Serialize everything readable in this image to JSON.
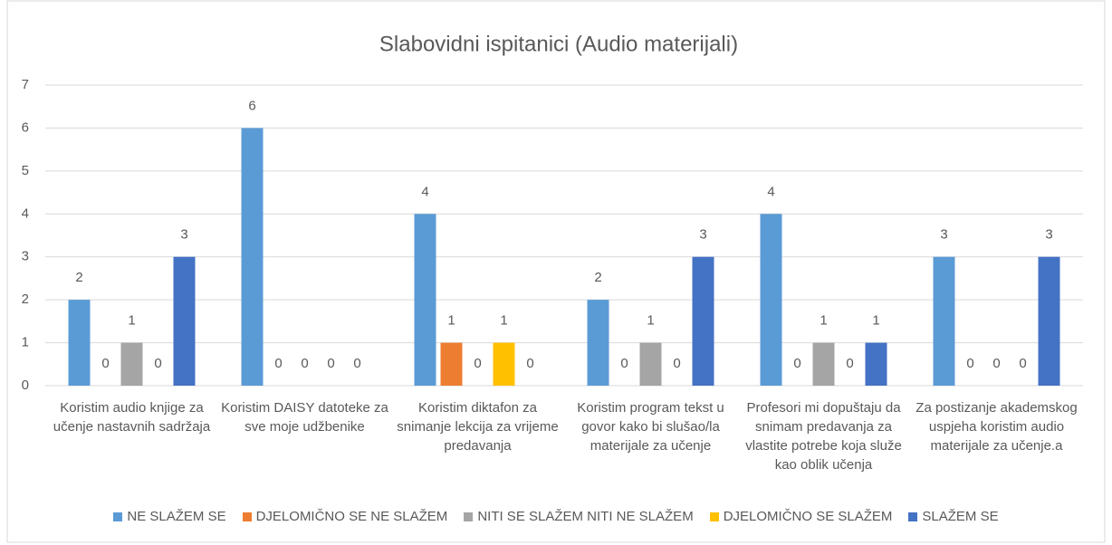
{
  "chart_data": {
    "type": "bar",
    "title": "Slabovidni ispitanici (Audio materijali)",
    "categories": [
      "Koristim audio knjige za učenje nastavnih sadržaja",
      "Koristim DAISY datoteke za sve moje udžbenike",
      "Koristim diktafon za snimanje lekcija za vrijeme predavanja",
      "Koristim program tekst u govor kako bi slušao/la materijale za učenje",
      "Profesori mi dopuštaju da snimam predavanja za vlastite potrebe koja služe kao oblik učenja",
      "Za postizanje akademskog uspjeha koristim audio materijale za učenje.a"
    ],
    "series": [
      {
        "name": "NE SLAŽEM SE",
        "color": "#5b9bd5",
        "values": [
          2,
          6,
          4,
          2,
          4,
          3
        ]
      },
      {
        "name": "DJELOMIČNO SE NE SLAŽEM",
        "color": "#ed7d31",
        "values": [
          0,
          0,
          1,
          0,
          0,
          0
        ]
      },
      {
        "name": "NITI SE SLAŽEM NITI NE SLAŽEM",
        "color": "#a5a5a5",
        "values": [
          1,
          0,
          0,
          1,
          1,
          0
        ]
      },
      {
        "name": "DJELOMIČNO SE SLAŽEM",
        "color": "#ffc000",
        "values": [
          0,
          0,
          1,
          0,
          0,
          0
        ]
      },
      {
        "name": "SLAŽEM SE",
        "color": "#4472c4",
        "values": [
          3,
          0,
          0,
          3,
          1,
          3
        ]
      }
    ],
    "ylim": [
      0,
      7
    ],
    "yticks": [
      0,
      1,
      2,
      3,
      4,
      5,
      6,
      7
    ],
    "grid": true,
    "legend": "bottom"
  }
}
